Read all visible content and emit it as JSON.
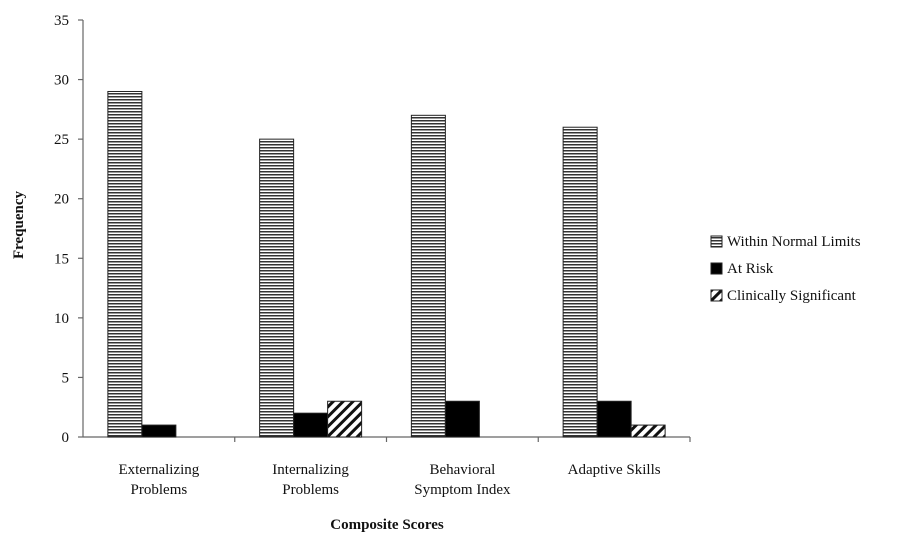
{
  "chart_data": {
    "type": "bar",
    "title": "",
    "xlabel": "Composite Scores",
    "ylabel": "Frequency",
    "ylim": [
      0,
      35
    ],
    "yticks": [
      0,
      5,
      10,
      15,
      20,
      25,
      30,
      35
    ],
    "grid": false,
    "legend_position": "right",
    "categories": [
      [
        "Externalizing",
        "Problems"
      ],
      [
        "Internalizing",
        "Problems"
      ],
      [
        "Behavioral",
        "Symptom Index"
      ],
      [
        "Adaptive Skills"
      ]
    ],
    "series": [
      {
        "name": "Within Normal Limits",
        "pattern": "horizontal-stripes",
        "values": [
          29,
          25,
          27,
          26
        ]
      },
      {
        "name": "At Risk",
        "pattern": "solid-black",
        "values": [
          1,
          2,
          3,
          3
        ]
      },
      {
        "name": "Clinically Significant",
        "pattern": "diagonal-hatch",
        "values": [
          0,
          3,
          0,
          1
        ]
      }
    ]
  }
}
